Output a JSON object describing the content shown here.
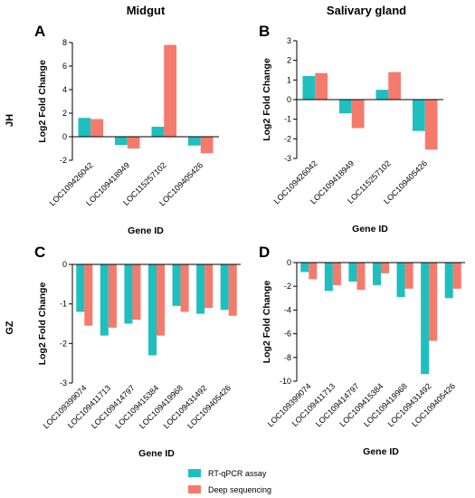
{
  "figure": {
    "column_titles": [
      "Midgut",
      "Salivary gland"
    ],
    "row_labels": [
      "JH",
      "GZ"
    ],
    "legend": [
      {
        "label": "RT-qPCR assay",
        "color": "#1fbfbf"
      },
      {
        "label": "Deep sequencing",
        "color": "#f47a6c"
      }
    ]
  },
  "chart_data": [
    {
      "panel": "A",
      "type": "bar",
      "xlabel": "Gene ID",
      "ylabel": "Log2 Fold Change",
      "ylim": [
        -2,
        8
      ],
      "yticks": [
        -2,
        0,
        2,
        4,
        6,
        8
      ],
      "categories": [
        "LOC109426042",
        "LOC109418949",
        "LOC115257102",
        "LOC109405426"
      ],
      "series": [
        {
          "name": "RT-qPCR assay",
          "values": [
            1.6,
            -0.7,
            0.85,
            -0.75
          ]
        },
        {
          "name": "Deep sequencing",
          "values": [
            1.5,
            -1.0,
            7.8,
            -1.4
          ]
        }
      ]
    },
    {
      "panel": "B",
      "type": "bar",
      "xlabel": "Gene ID",
      "ylabel": "Log2 Fold Change",
      "ylim": [
        -3,
        3
      ],
      "yticks": [
        -3,
        -2,
        -1,
        0,
        1,
        2,
        3
      ],
      "categories": [
        "LOC109426042",
        "LOC109418949",
        "LOC115257102",
        "LOC109405426"
      ],
      "series": [
        {
          "name": "RT-qPCR assay",
          "values": [
            1.2,
            -0.7,
            0.5,
            -1.6
          ]
        },
        {
          "name": "Deep sequencing",
          "values": [
            1.35,
            -1.45,
            1.4,
            -2.55
          ]
        }
      ]
    },
    {
      "panel": "C",
      "type": "bar",
      "xlabel": "Gene ID",
      "ylabel": "Log2 Fold Change",
      "ylim": [
        -3,
        0
      ],
      "yticks": [
        -3,
        -2,
        -1,
        0
      ],
      "categories": [
        "LOC109399074",
        "LOC109411713",
        "LOC109414797",
        "LOC109415384",
        "LOC109419968",
        "LOC109431492",
        "LOC109405426"
      ],
      "series": [
        {
          "name": "RT-qPCR assay",
          "values": [
            -1.2,
            -1.8,
            -1.5,
            -2.3,
            -1.05,
            -1.25,
            -1.15
          ]
        },
        {
          "name": "Deep sequencing",
          "values": [
            -1.55,
            -1.6,
            -1.4,
            -1.8,
            -1.2,
            -1.1,
            -1.3
          ]
        }
      ]
    },
    {
      "panel": "D",
      "type": "bar",
      "xlabel": "Gene ID",
      "ylabel": "Log2 Fold Change",
      "ylim": [
        -10,
        0
      ],
      "yticks": [
        -10,
        -8,
        -6,
        -4,
        -2,
        0
      ],
      "categories": [
        "LOC109399074",
        "LOC109411713",
        "LOC109414797",
        "LOC109415384",
        "LOC109419968",
        "LOC109431492",
        "LOC109405426"
      ],
      "series": [
        {
          "name": "RT-qPCR assay",
          "values": [
            -0.8,
            -2.4,
            -1.6,
            -1.9,
            -2.9,
            -9.4,
            -3.0
          ]
        },
        {
          "name": "Deep sequencing",
          "values": [
            -1.4,
            -1.9,
            -2.3,
            -0.9,
            -2.2,
            -6.6,
            -2.2
          ]
        }
      ]
    }
  ]
}
